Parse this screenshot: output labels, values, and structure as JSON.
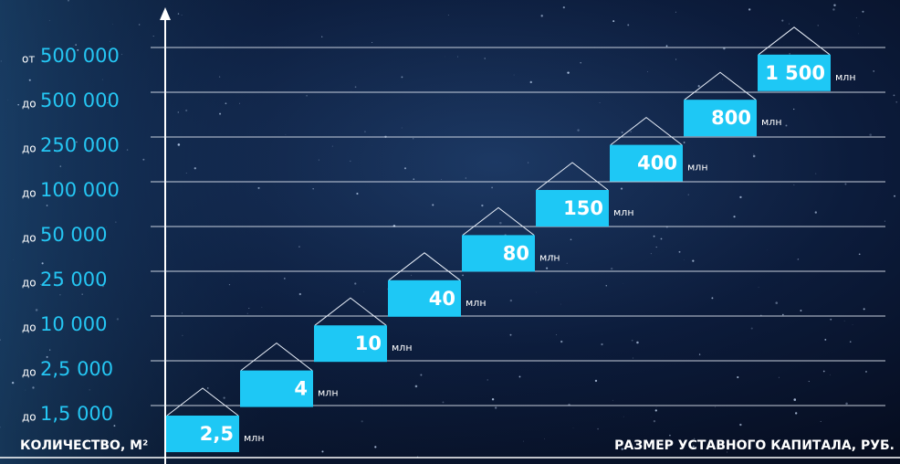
{
  "rows": [
    {
      "prefix": "от",
      "value": "500 000"
    },
    {
      "prefix": "до",
      "value": "500 000"
    },
    {
      "prefix": "до",
      "value": "250 000"
    },
    {
      "prefix": "до",
      "value": "100 000"
    },
    {
      "prefix": "до",
      "value": "50 000"
    },
    {
      "prefix": "до",
      "value": "25 000"
    },
    {
      "prefix": "до",
      "value": "10 000"
    },
    {
      "prefix": "до",
      "value": "2,5 000"
    },
    {
      "prefix": "до",
      "value": "1,5 000"
    }
  ],
  "steps": [
    {
      "value": "2,5",
      "unit": "млн"
    },
    {
      "value": "4",
      "unit": "млн"
    },
    {
      "value": "10",
      "unit": "млн"
    },
    {
      "value": "40",
      "unit": "млн"
    },
    {
      "value": "80",
      "unit": "млн"
    },
    {
      "value": "150",
      "unit": "млн"
    },
    {
      "value": "400",
      "unit": "млн"
    },
    {
      "value": "800",
      "unit": "млн"
    },
    {
      "value": "1 500",
      "unit": "млн"
    }
  ],
  "axis_labels": {
    "y": "КОЛИЧЕСТВО, М²",
    "x": "РАЗМЕР УСТАВНОГО КАПИТАЛА, РУБ."
  }
}
